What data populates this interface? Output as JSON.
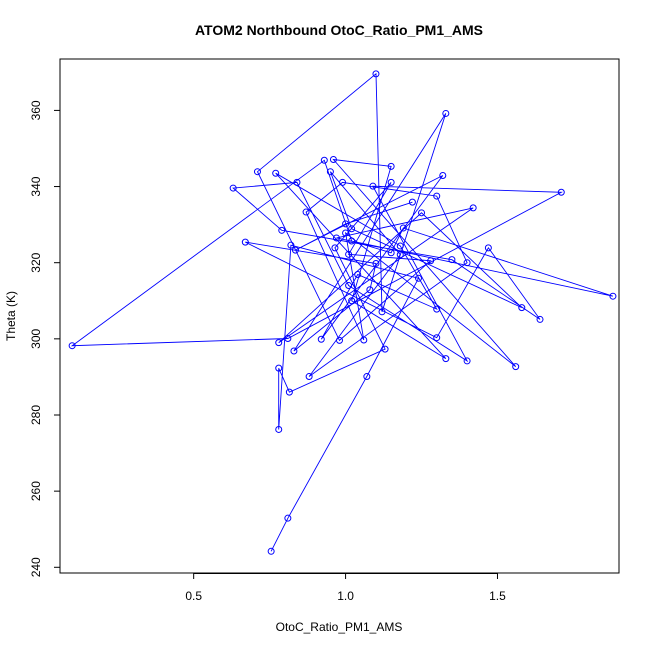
{
  "chart_data": {
    "type": "line",
    "title": "ATOM2 Northbound OtoC_Ratio_PM1_AMS",
    "xlabel": "OtoC_Ratio_PM1_AMS",
    "ylabel": "Theta (K)",
    "xlim": [
      0.06,
      1.9
    ],
    "ylim": [
      238.5,
      373.5
    ],
    "x_ticks": [
      0.5,
      1.0,
      1.5
    ],
    "x_tick_labels": [
      "0.5",
      "1.0",
      "1.5"
    ],
    "y_ticks": [
      240,
      260,
      280,
      300,
      320,
      340,
      360
    ],
    "y_tick_labels": [
      "240",
      "260",
      "280",
      "300",
      "320",
      "340",
      "360"
    ],
    "grid": false,
    "legend": "none",
    "colors": {
      "series": "#0000ff",
      "axis": "#000000"
    },
    "series": [
      {
        "marker": "open-circle",
        "points": [
          [
            0.755,
            244.2
          ],
          [
            0.81,
            252.9
          ],
          [
            1.07,
            290.1
          ],
          [
            1.24,
            315.9
          ],
          [
            0.82,
            324.6
          ],
          [
            0.78,
            276.2
          ],
          [
            0.78,
            292.3
          ],
          [
            0.815,
            286.0
          ],
          [
            1.13,
            297.3
          ],
          [
            0.965,
            323.9
          ],
          [
            1.15,
            341.1
          ],
          [
            1.01,
            322.2
          ],
          [
            1.28,
            320.5
          ],
          [
            0.98,
            299.6
          ],
          [
            0.71,
            343.9
          ],
          [
            1.1,
            369.6
          ],
          [
            1.12,
            307.1
          ],
          [
            1.33,
            359.2
          ],
          [
            0.83,
            296.8
          ],
          [
            1.08,
            312.9
          ],
          [
            1.1,
            319.8
          ],
          [
            0.67,
            325.4
          ],
          [
            1.3,
            300.3
          ],
          [
            1.47,
            323.9
          ],
          [
            1.64,
            305.1
          ],
          [
            1.35,
            320.8
          ],
          [
            0.79,
            328.5
          ],
          [
            0.63,
            339.6
          ],
          [
            0.84,
            341.1
          ],
          [
            1.01,
            314.0
          ],
          [
            1.4,
            294.2
          ],
          [
            1.09,
            340.1
          ],
          [
            1.71,
            338.5
          ],
          [
            0.81,
            300.1
          ],
          [
            0.1,
            298.2
          ],
          [
            0.93,
            346.9
          ],
          [
            1.02,
            325.7
          ],
          [
            1.15,
            322.6
          ],
          [
            1.19,
            329.1
          ],
          [
            1.88,
            311.2
          ],
          [
            0.97,
            326.5
          ],
          [
            1.42,
            334.4
          ],
          [
            0.78,
            299.0
          ],
          [
            1.25,
            333.1
          ],
          [
            1.58,
            308.2
          ],
          [
            1.02,
            328.9
          ],
          [
            0.95,
            343.9
          ],
          [
            1.18,
            322.1
          ],
          [
            0.88,
            290.1
          ],
          [
            1.4,
            320.0
          ],
          [
            1.3,
            337.5
          ],
          [
            0.99,
            341.1
          ],
          [
            0.87,
            333.3
          ],
          [
            1.06,
            299.7
          ],
          [
            1.0,
            327.8
          ],
          [
            1.56,
            292.7
          ],
          [
            0.96,
            347.1
          ],
          [
            1.15,
            345.3
          ],
          [
            1.02,
            310.0
          ],
          [
            1.33,
            294.8
          ],
          [
            0.77,
            343.5
          ],
          [
            1.18,
            324.4
          ],
          [
            1.3,
            307.8
          ],
          [
            1.04,
            316.9
          ],
          [
            0.92,
            299.9
          ],
          [
            1.32,
            342.9
          ],
          [
            0.835,
            323.3
          ],
          [
            1.0,
            330.2
          ],
          [
            1.22,
            335.9
          ]
        ]
      }
    ]
  }
}
